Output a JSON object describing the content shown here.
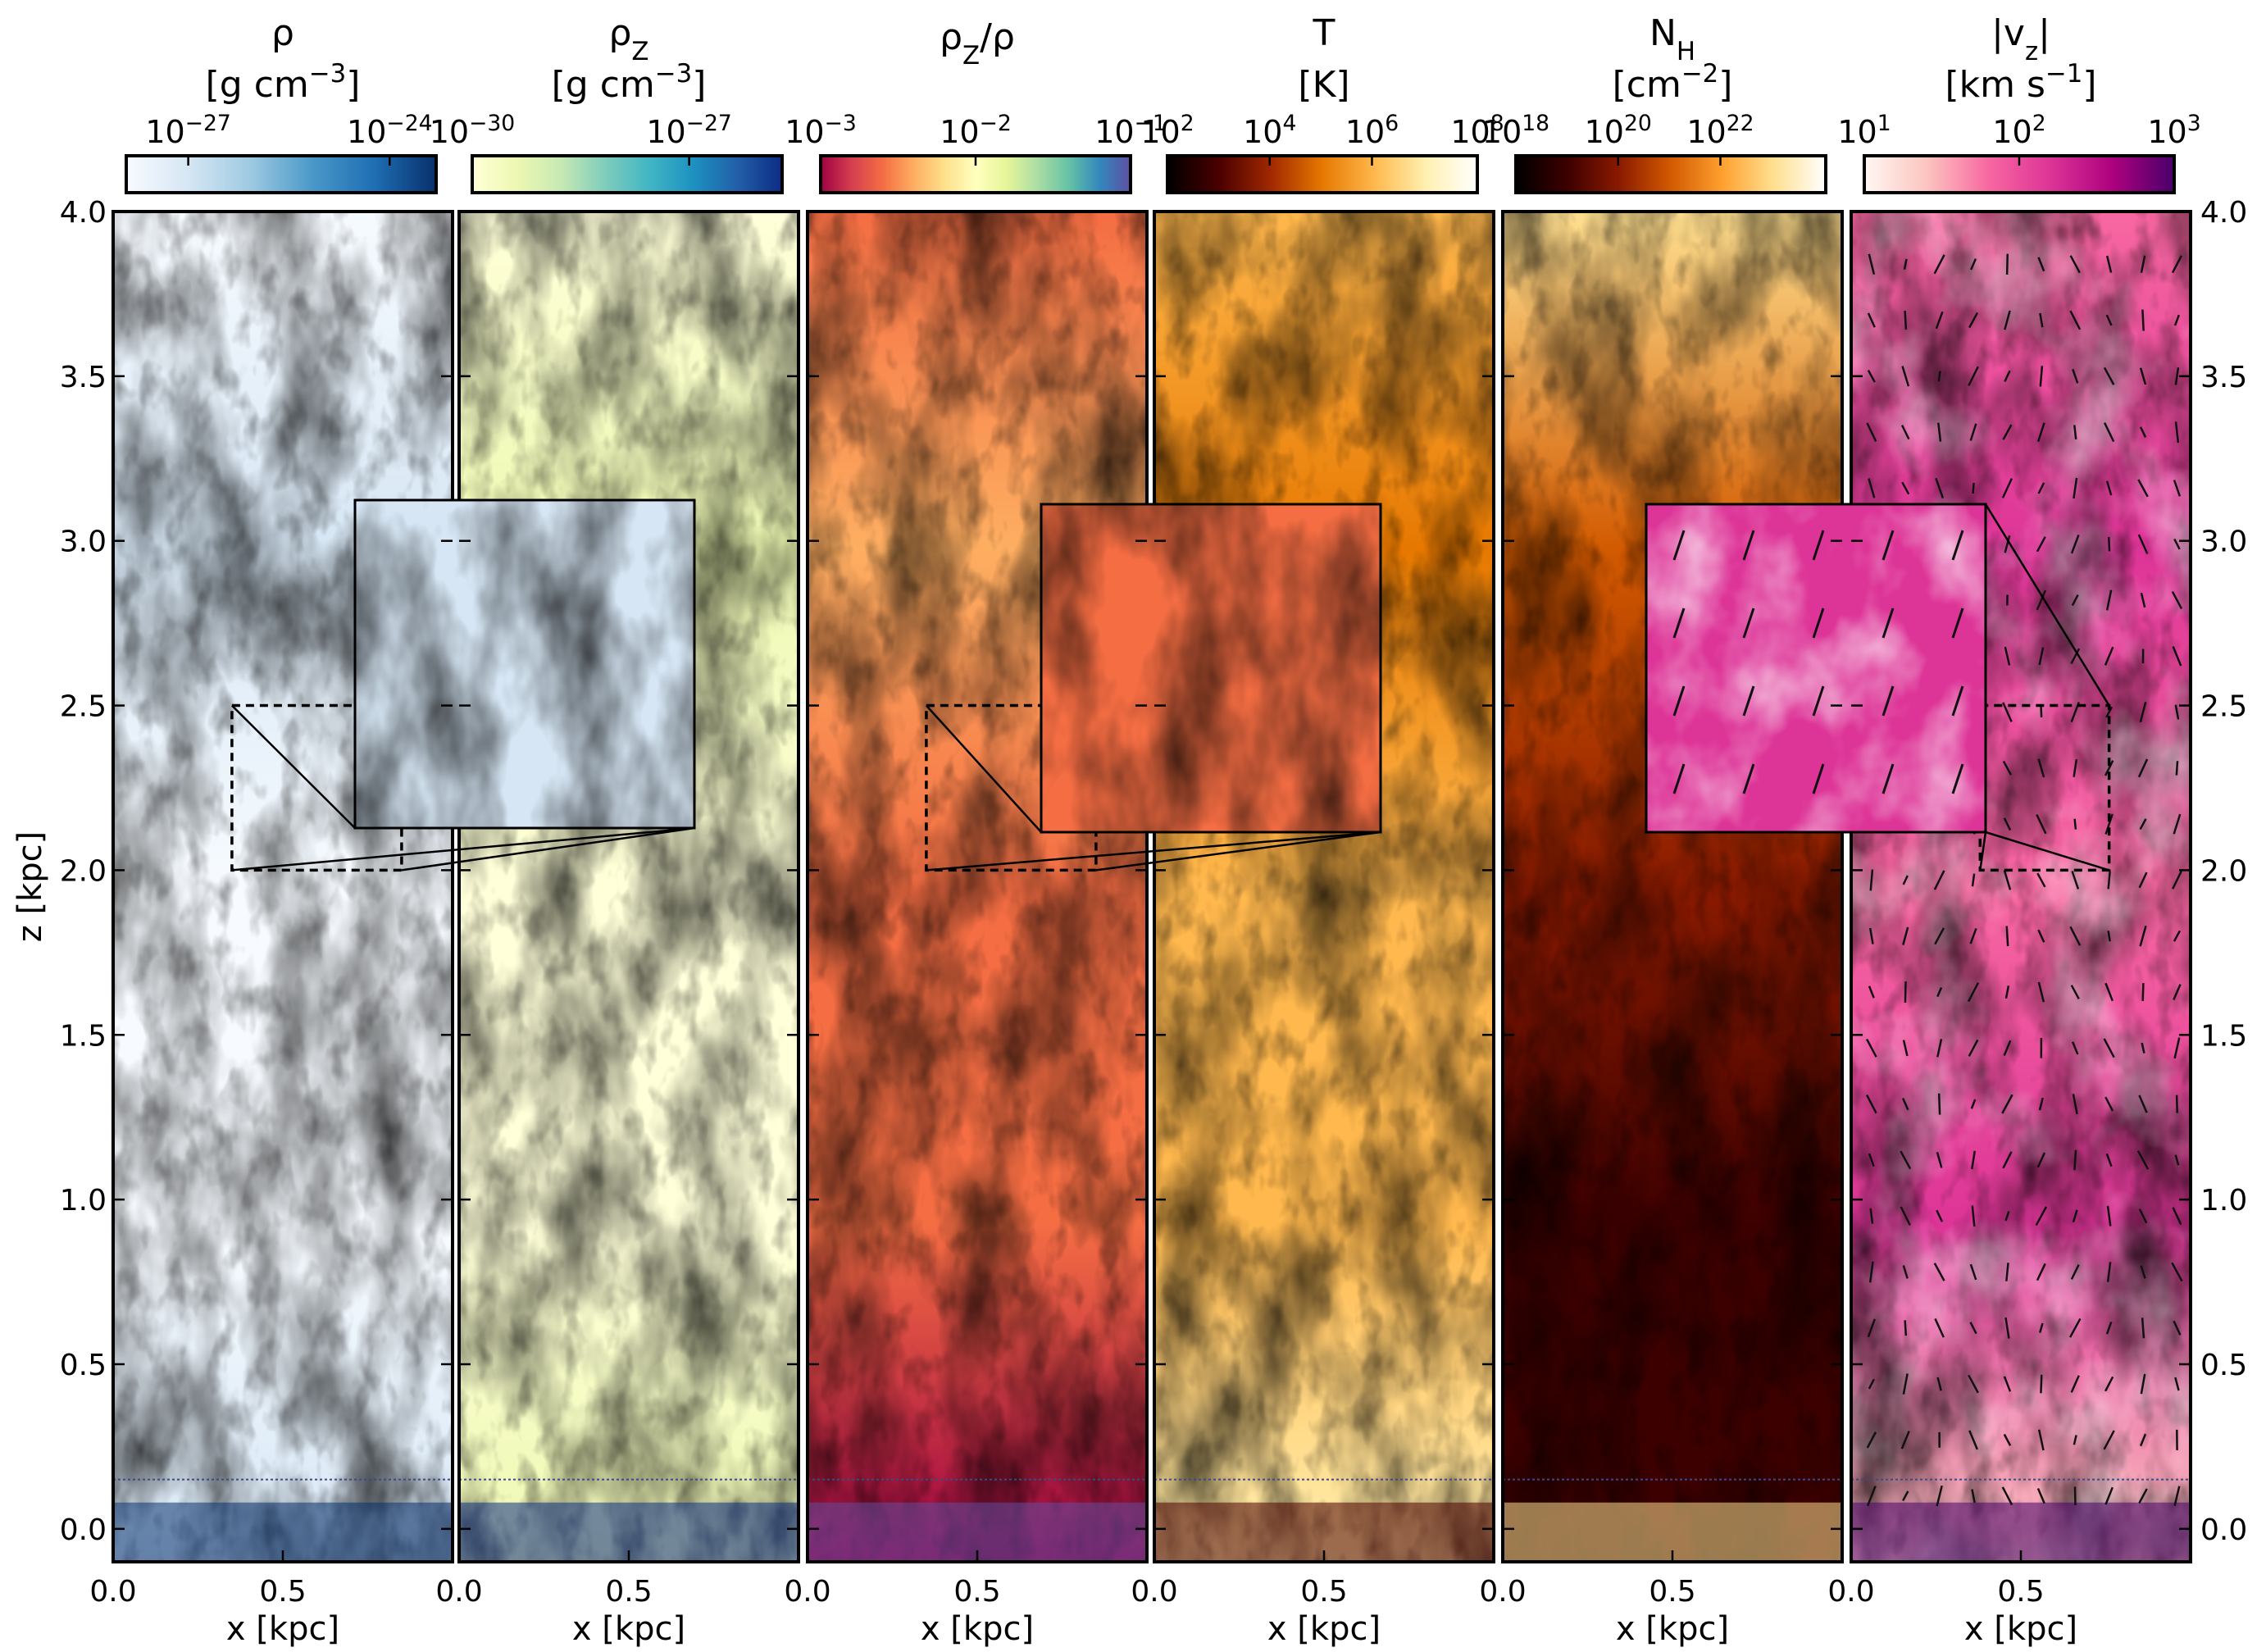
{
  "figure": {
    "panels": [
      {
        "id": "rho",
        "title": "ρ",
        "unit_parts": [
          "[g cm",
          "−3",
          "]"
        ],
        "colormap": "Blues",
        "colorbar_stops": [
          "#f7fbff",
          "#d6e6f4",
          "#9ecae1",
          "#4a98c9",
          "#1f6eb3",
          "#08306b"
        ],
        "colorbar_ticks": [
          {
            "base": "10",
            "exp": "−27",
            "pos": 0.2
          },
          {
            "base": "10",
            "exp": "−24",
            "pos": 0.85
          }
        ],
        "has_zoom": true
      },
      {
        "id": "rhoZ",
        "title_main": "ρ",
        "title_sub": "Z",
        "unit_parts": [
          "[g cm",
          "−3",
          "]"
        ],
        "colormap": "YlGnBu",
        "colorbar_stops": [
          "#ffffd9",
          "#edf8b1",
          "#c7e9b4",
          "#7fcdbb",
          "#41b6c4",
          "#1d91c0",
          "#225ea8",
          "#0c2c84"
        ],
        "colorbar_ticks": [
          {
            "base": "10",
            "exp": "−30",
            "pos": 0.0
          },
          {
            "base": "10",
            "exp": "−27",
            "pos": 0.7
          }
        ],
        "has_zoom": false
      },
      {
        "id": "ratio",
        "title_main": "ρ",
        "title_sub": "Z",
        "title_tail": "/ρ",
        "unit_parts": [],
        "colormap": "Spectral",
        "colorbar_stops": [
          "#9e0142",
          "#d53e4f",
          "#f46d43",
          "#fdae61",
          "#fee08b",
          "#ffffbf",
          "#e6f598",
          "#abdda4",
          "#66c2a5",
          "#3288bd",
          "#5e4fa2"
        ],
        "colorbar_ticks": [
          {
            "base": "10",
            "exp": "−3",
            "pos": 0.0
          },
          {
            "base": "10",
            "exp": "−2",
            "pos": 0.5
          },
          {
            "base": "10",
            "exp": "−1",
            "pos": 1.0
          }
        ],
        "has_zoom": true
      },
      {
        "id": "T",
        "title": "T",
        "unit_parts": [
          "[K]"
        ],
        "colormap": "afmhot",
        "colorbar_stops": [
          "#000000",
          "#4a0000",
          "#a02800",
          "#e67800",
          "#ffb84d",
          "#fff0b0",
          "#ffffff"
        ],
        "colorbar_ticks": [
          {
            "base": "10",
            "exp": "2",
            "pos": 0.0
          },
          {
            "base": "10",
            "exp": "4",
            "pos": 0.33
          },
          {
            "base": "10",
            "exp": "6",
            "pos": 0.66
          },
          {
            "base": "10",
            "exp": "8",
            "pos": 1.0
          }
        ],
        "has_zoom": false
      },
      {
        "id": "NH",
        "title_main": "N",
        "title_sub": "H",
        "unit_parts": [
          "[cm",
          "−2",
          "]"
        ],
        "colormap": "afmhot",
        "colorbar_stops": [
          "#000000",
          "#3d0000",
          "#8a1a00",
          "#d25a00",
          "#ffa030",
          "#ffe090",
          "#ffffff"
        ],
        "colorbar_ticks": [
          {
            "base": "10",
            "exp": "18",
            "pos": 0.0
          },
          {
            "base": "10",
            "exp": "20",
            "pos": 0.33
          },
          {
            "base": "10",
            "exp": "22",
            "pos": 0.66
          }
        ],
        "has_zoom": false
      },
      {
        "id": "vz",
        "title_main": "|v",
        "title_sub": "z",
        "title_tail": "|",
        "unit_parts": [
          "[km s",
          "−1",
          "]"
        ],
        "colormap": "RdPu",
        "colorbar_stops": [
          "#fff7f3",
          "#fcc5c0",
          "#f768a1",
          "#dd3497",
          "#ae017e",
          "#49006a"
        ],
        "colorbar_ticks": [
          {
            "base": "10",
            "exp": "1",
            "pos": 0.0
          },
          {
            "base": "10",
            "exp": "2",
            "pos": 0.5
          },
          {
            "base": "10",
            "exp": "3",
            "pos": 1.0
          }
        ],
        "has_zoom": true
      }
    ],
    "x_axis": {
      "label": "x [kpc]",
      "ticks": [
        0.0,
        0.5
      ],
      "tick_labels": [
        "0.0",
        "0.5"
      ],
      "range": [
        0.0,
        1.0
      ]
    },
    "z_axis": {
      "label": "z [kpc]",
      "ticks": [
        0.0,
        0.5,
        1.0,
        1.5,
        2.0,
        2.5,
        3.0,
        3.5,
        4.0
      ],
      "tick_labels": [
        "0.0",
        "0.5",
        "1.0",
        "1.5",
        "2.0",
        "2.5",
        "3.0",
        "3.5",
        "4.0"
      ],
      "range": [
        -0.1,
        4.0
      ]
    },
    "zoom_region": {
      "x_range": [
        0.35,
        0.85
      ],
      "z_range": [
        2.0,
        2.5
      ]
    },
    "midplane_marker_z": 0.15
  }
}
